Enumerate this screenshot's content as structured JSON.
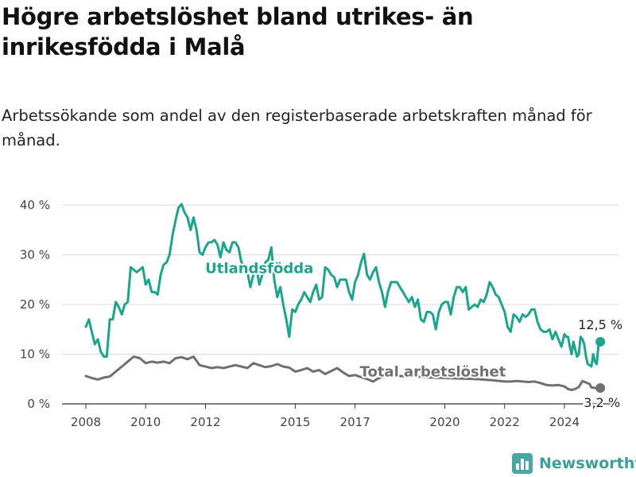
{
  "header": {
    "title": "Högre arbetslöshet bland utrikes- än inrikesfödda i Malå",
    "subtitle": "Arbetssökande som andel av den registerbaserade arbetskraften månad för månad."
  },
  "brand": {
    "name": "Newsworthy",
    "icon": "bar-chart-icon",
    "color": "#3a9f99"
  },
  "chart_data": {
    "type": "line",
    "title": "Högre arbetslöshet bland utrikes- än inrikesfödda i Malå",
    "subtitle": "Arbetssökande som andel av den registerbaserade arbetskraften månad för månad.",
    "xlabel": "",
    "ylabel": "",
    "xlim": [
      2007.5,
      2025.4
    ],
    "ylim": [
      0,
      40
    ],
    "x_ticks": [
      2008,
      2010,
      2012,
      2015,
      2017,
      2020,
      2022,
      2024
    ],
    "y_ticks": [
      {
        "value": 0,
        "label": "0 %"
      },
      {
        "value": 10,
        "label": "10 %"
      },
      {
        "value": 20,
        "label": "20 %"
      },
      {
        "value": 30,
        "label": "30 %"
      },
      {
        "value": 40,
        "label": "40 %"
      }
    ],
    "grid": "horizontal",
    "legend": "inline labels",
    "series": [
      {
        "name": "Utlandsfödda",
        "color": "#1aa68c",
        "end_label": "12,5 %",
        "points": [
          [
            2008.0,
            15.5
          ],
          [
            2008.1,
            17.0
          ],
          [
            2008.2,
            14.5
          ],
          [
            2008.3,
            12.0
          ],
          [
            2008.4,
            13.0
          ],
          [
            2008.5,
            10.5
          ],
          [
            2008.6,
            9.5
          ],
          [
            2008.7,
            9.5
          ],
          [
            2008.8,
            17.0
          ],
          [
            2008.9,
            17.0
          ],
          [
            2009.0,
            20.5
          ],
          [
            2009.1,
            19.5
          ],
          [
            2009.2,
            18.0
          ],
          [
            2009.3,
            20.0
          ],
          [
            2009.4,
            20.5
          ],
          [
            2009.5,
            27.5
          ],
          [
            2009.6,
            27.0
          ],
          [
            2009.7,
            26.5
          ],
          [
            2009.8,
            27.0
          ],
          [
            2009.9,
            27.5
          ],
          [
            2010.0,
            24.0
          ],
          [
            2010.1,
            25.0
          ],
          [
            2010.2,
            22.5
          ],
          [
            2010.3,
            22.5
          ],
          [
            2010.4,
            22.0
          ],
          [
            2010.5,
            26.0
          ],
          [
            2010.6,
            28.0
          ],
          [
            2010.7,
            28.5
          ],
          [
            2010.8,
            30.0
          ],
          [
            2010.9,
            34.0
          ],
          [
            2011.0,
            37.0
          ],
          [
            2011.1,
            39.5
          ],
          [
            2011.2,
            40.2
          ],
          [
            2011.3,
            38.5
          ],
          [
            2011.4,
            37.5
          ],
          [
            2011.5,
            35.0
          ],
          [
            2011.6,
            37.5
          ],
          [
            2011.7,
            35.0
          ],
          [
            2011.8,
            30.5
          ],
          [
            2011.9,
            30.0
          ],
          [
            2012.0,
            31.5
          ],
          [
            2012.1,
            32.5
          ],
          [
            2012.2,
            32.5
          ],
          [
            2012.3,
            33.0
          ],
          [
            2012.4,
            32.0
          ],
          [
            2012.5,
            29.5
          ],
          [
            2012.6,
            32.5
          ],
          [
            2012.7,
            31.0
          ],
          [
            2012.8,
            30.5
          ],
          [
            2012.9,
            32.5
          ],
          [
            2013.0,
            32.5
          ],
          [
            2013.1,
            31.5
          ],
          [
            2013.2,
            28.5
          ],
          [
            2013.3,
            27.5
          ],
          [
            2013.4,
            26.5
          ],
          [
            2013.5,
            23.5
          ],
          [
            2013.6,
            26.0
          ],
          [
            2013.7,
            27.5
          ],
          [
            2013.8,
            24.0
          ],
          [
            2013.9,
            26.0
          ],
          [
            2014.0,
            28.5
          ],
          [
            2014.1,
            29.0
          ],
          [
            2014.2,
            31.5
          ],
          [
            2014.3,
            25.0
          ],
          [
            2014.4,
            21.5
          ],
          [
            2014.5,
            23.5
          ],
          [
            2014.6,
            20.0
          ],
          [
            2014.7,
            17.0
          ],
          [
            2014.8,
            13.5
          ],
          [
            2014.9,
            19.0
          ],
          [
            2015.0,
            18.5
          ],
          [
            2015.1,
            20.0
          ],
          [
            2015.2,
            21.0
          ],
          [
            2015.3,
            22.5
          ],
          [
            2015.4,
            21.5
          ],
          [
            2015.5,
            20.5
          ],
          [
            2015.6,
            22.5
          ],
          [
            2015.7,
            24.0
          ],
          [
            2015.8,
            21.0
          ],
          [
            2015.9,
            21.5
          ],
          [
            2016.0,
            27.5
          ],
          [
            2016.1,
            27.0
          ],
          [
            2016.2,
            26.0
          ],
          [
            2016.3,
            25.5
          ],
          [
            2016.4,
            23.5
          ],
          [
            2016.5,
            25.0
          ],
          [
            2016.6,
            25.0
          ],
          [
            2016.7,
            25.0
          ],
          [
            2016.8,
            22.5
          ],
          [
            2016.9,
            21.0
          ],
          [
            2017.0,
            24.5
          ],
          [
            2017.1,
            26.0
          ],
          [
            2017.2,
            28.5
          ],
          [
            2017.3,
            30.2
          ],
          [
            2017.4,
            26.0
          ],
          [
            2017.5,
            25.0
          ],
          [
            2017.6,
            26.5
          ],
          [
            2017.7,
            27.5
          ],
          [
            2017.8,
            24.5
          ],
          [
            2017.9,
            22.5
          ],
          [
            2018.0,
            19.5
          ],
          [
            2018.1,
            22.5
          ],
          [
            2018.2,
            24.5
          ],
          [
            2018.3,
            24.5
          ],
          [
            2018.4,
            24.5
          ],
          [
            2018.5,
            23.5
          ],
          [
            2018.6,
            22.5
          ],
          [
            2018.7,
            21.5
          ],
          [
            2018.8,
            20.5
          ],
          [
            2018.9,
            21.5
          ],
          [
            2019.0,
            19.5
          ],
          [
            2019.1,
            21.0
          ],
          [
            2019.2,
            17.0
          ],
          [
            2019.3,
            16.5
          ],
          [
            2019.4,
            18.5
          ],
          [
            2019.5,
            18.5
          ],
          [
            2019.6,
            18.0
          ],
          [
            2019.7,
            15.0
          ],
          [
            2019.8,
            18.5
          ],
          [
            2019.9,
            20.0
          ],
          [
            2020.0,
            20.5
          ],
          [
            2020.1,
            20.5
          ],
          [
            2020.2,
            18.0
          ],
          [
            2020.3,
            21.5
          ],
          [
            2020.4,
            23.5
          ],
          [
            2020.5,
            23.5
          ],
          [
            2020.6,
            22.5
          ],
          [
            2020.7,
            23.5
          ],
          [
            2020.8,
            19.0
          ],
          [
            2020.9,
            19.5
          ],
          [
            2021.0,
            20.0
          ],
          [
            2021.1,
            19.5
          ],
          [
            2021.2,
            21.0
          ],
          [
            2021.3,
            20.5
          ],
          [
            2021.4,
            22.0
          ],
          [
            2021.5,
            24.5
          ],
          [
            2021.6,
            23.5
          ],
          [
            2021.7,
            22.0
          ],
          [
            2021.8,
            21.5
          ],
          [
            2021.9,
            20.0
          ],
          [
            2022.0,
            18.5
          ],
          [
            2022.1,
            15.5
          ],
          [
            2022.2,
            14.5
          ],
          [
            2022.3,
            18.0
          ],
          [
            2022.4,
            17.5
          ],
          [
            2022.5,
            16.5
          ],
          [
            2022.6,
            18.0
          ],
          [
            2022.7,
            17.5
          ],
          [
            2022.8,
            18.0
          ],
          [
            2022.9,
            19.0
          ],
          [
            2023.0,
            19.0
          ],
          [
            2023.1,
            16.5
          ],
          [
            2023.2,
            15.0
          ],
          [
            2023.3,
            14.5
          ],
          [
            2023.4,
            14.5
          ],
          [
            2023.5,
            15.0
          ],
          [
            2023.6,
            13.0
          ],
          [
            2023.7,
            14.5
          ],
          [
            2023.8,
            13.0
          ],
          [
            2023.9,
            11.5
          ],
          [
            2024.0,
            14.0
          ],
          [
            2024.1,
            13.5
          ],
          [
            2024.2,
            13.5
          ],
          [
            2024.3,
            11.5
          ],
          [
            2024.4,
            10.0
          ],
          [
            2024.5,
            12.5
          ],
          [
            2024.6,
            11.0
          ],
          [
            2024.7,
            9.5
          ],
          [
            2024.8,
            10.0
          ],
          [
            2024.9,
            13.5
          ],
          [
            2025.0,
            13.0
          ],
          [
            2025.1,
            12.0
          ],
          [
            2025.2,
            9.5
          ],
          [
            2025.3,
            8.0
          ],
          [
            2025.4,
            7.8
          ],
          [
            2025.5,
            7.5
          ],
          [
            2025.6,
            10.0
          ],
          [
            2025.7,
            8.5
          ],
          [
            2025.8,
            8.0
          ],
          [
            2025.9,
            12.0
          ],
          [
            2026.0,
            12.5
          ]
        ]
      },
      {
        "name": "Total arbetslöshet",
        "color": "#707070",
        "end_label": "3,2 %",
        "points": [
          [
            2008.0,
            5.6
          ],
          [
            2008.2,
            5.2
          ],
          [
            2008.4,
            4.9
          ],
          [
            2008.6,
            5.3
          ],
          [
            2008.8,
            5.5
          ],
          [
            2009.0,
            6.5
          ],
          [
            2009.2,
            7.5
          ],
          [
            2009.4,
            8.5
          ],
          [
            2009.6,
            9.5
          ],
          [
            2009.8,
            9.2
          ],
          [
            2010.0,
            8.2
          ],
          [
            2010.2,
            8.5
          ],
          [
            2010.4,
            8.3
          ],
          [
            2010.6,
            8.5
          ],
          [
            2010.8,
            8.2
          ],
          [
            2011.0,
            9.2
          ],
          [
            2011.2,
            9.4
          ],
          [
            2011.4,
            9.0
          ],
          [
            2011.6,
            9.5
          ],
          [
            2011.8,
            7.8
          ],
          [
            2012.0,
            7.5
          ],
          [
            2012.2,
            7.2
          ],
          [
            2012.4,
            7.4
          ],
          [
            2012.6,
            7.2
          ],
          [
            2012.8,
            7.5
          ],
          [
            2013.0,
            7.8
          ],
          [
            2013.2,
            7.5
          ],
          [
            2013.4,
            7.2
          ],
          [
            2013.6,
            8.2
          ],
          [
            2013.8,
            7.8
          ],
          [
            2014.0,
            7.4
          ],
          [
            2014.2,
            7.6
          ],
          [
            2014.4,
            8.0
          ],
          [
            2014.6,
            7.5
          ],
          [
            2014.8,
            7.3
          ],
          [
            2015.0,
            6.5
          ],
          [
            2015.2,
            6.8
          ],
          [
            2015.4,
            7.2
          ],
          [
            2015.6,
            6.5
          ],
          [
            2015.8,
            6.8
          ],
          [
            2016.0,
            6.0
          ],
          [
            2016.2,
            6.6
          ],
          [
            2016.4,
            7.2
          ],
          [
            2016.6,
            6.3
          ],
          [
            2016.8,
            5.6
          ],
          [
            2017.0,
            5.8
          ],
          [
            2017.2,
            5.4
          ],
          [
            2017.4,
            5.0
          ],
          [
            2017.6,
            4.5
          ],
          [
            2017.8,
            5.2
          ],
          [
            2018.0,
            5.5
          ],
          [
            2018.5,
            5.6
          ],
          [
            2019.0,
            5.5
          ],
          [
            2019.5,
            5.3
          ],
          [
            2020.0,
            5.2
          ],
          [
            2020.5,
            5.1
          ],
          [
            2021.0,
            5.0
          ],
          [
            2021.5,
            4.8
          ],
          [
            2022.0,
            4.5
          ],
          [
            2022.2,
            4.5
          ],
          [
            2022.4,
            4.6
          ],
          [
            2022.6,
            4.5
          ],
          [
            2022.8,
            4.4
          ],
          [
            2023.0,
            4.5
          ],
          [
            2023.2,
            4.2
          ],
          [
            2023.4,
            3.8
          ],
          [
            2023.6,
            3.7
          ],
          [
            2023.8,
            3.8
          ],
          [
            2024.0,
            3.5
          ],
          [
            2024.2,
            3.0
          ],
          [
            2024.4,
            2.8
          ],
          [
            2024.6,
            3.0
          ],
          [
            2024.8,
            3.4
          ],
          [
            2025.0,
            4.6
          ],
          [
            2025.2,
            4.3
          ],
          [
            2025.4,
            4.0
          ],
          [
            2025.5,
            3.3
          ],
          [
            2025.7,
            3.2
          ],
          [
            2025.9,
            3.2
          ],
          [
            2026.0,
            3.2
          ]
        ]
      }
    ]
  }
}
